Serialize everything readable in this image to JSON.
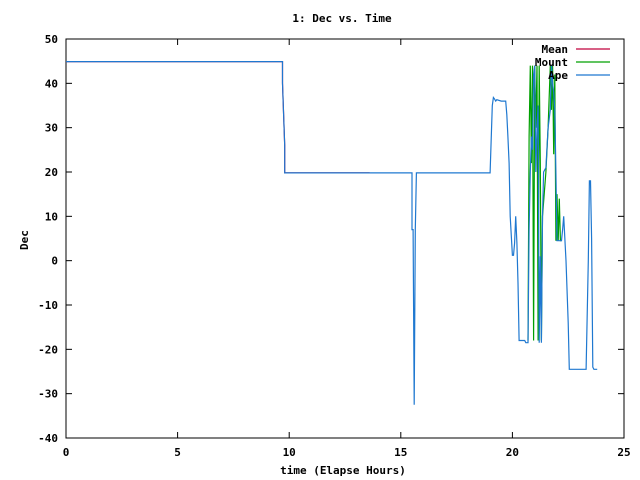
{
  "chart_data": {
    "type": "line",
    "title": "1: Dec vs. Time",
    "xlabel": "time (Elapse Hours)",
    "ylabel": "Dec",
    "xlim": [
      0,
      25
    ],
    "ylim": [
      -40,
      50
    ],
    "xticks": [
      0,
      5,
      10,
      15,
      20,
      25
    ],
    "yticks": [
      -40,
      -30,
      -20,
      -10,
      0,
      10,
      20,
      30,
      40,
      50
    ],
    "grid": false,
    "legend_position": "top-right",
    "series": [
      {
        "name": "Mean",
        "color": "#c0003c",
        "x": [
          0,
          9.7,
          9.7,
          9.8,
          9.8,
          13.6
        ],
        "y": [
          44.9,
          44.9,
          40,
          26,
          19.8,
          19.8
        ]
      },
      {
        "name": "Mount",
        "color": "#00a000",
        "x": [
          20.7,
          20.75,
          20.8,
          20.85,
          20.9,
          20.95,
          21.0,
          21.05,
          21.1,
          21.15,
          21.2,
          21.25,
          21.3,
          21.35,
          21.5,
          21.6,
          21.7,
          21.75,
          21.8,
          21.85,
          21.9,
          21.95,
          22.0,
          22.05,
          22.1,
          22.15,
          22.2
        ],
        "y": [
          -18,
          28,
          44,
          22,
          44,
          -18,
          44,
          30,
          44,
          -18,
          44,
          22,
          -18,
          10,
          20,
          30,
          44,
          34,
          44,
          24,
          42,
          4.5,
          15,
          4.5,
          14,
          4.5,
          4.5
        ]
      },
      {
        "name": "Ape",
        "color": "#1f78d0",
        "x": [
          0,
          9.7,
          9.7,
          9.8,
          9.8,
          15.4,
          15.5,
          15.5,
          15.55,
          15.6,
          15.65,
          15.7,
          19.0,
          19.1,
          19.15,
          19.2,
          19.25,
          19.3,
          19.5,
          19.7,
          19.75,
          19.8,
          19.85,
          19.9,
          20.0,
          20.05,
          20.1,
          20.15,
          20.2,
          20.25,
          20.3,
          20.35,
          20.4,
          20.45,
          20.5,
          20.55,
          20.6,
          20.7,
          20.75,
          20.8,
          20.85,
          20.9,
          20.95,
          21.0,
          21.05,
          21.1,
          21.15,
          21.2,
          21.25,
          21.3,
          21.35,
          21.4,
          21.5,
          21.6,
          21.7,
          21.75,
          21.8,
          21.85,
          21.9,
          21.95,
          22.0,
          22.1,
          22.2,
          22.25,
          22.3,
          22.4,
          22.5,
          22.55,
          22.6,
          22.7,
          22.8,
          22.9,
          23.0,
          23.1,
          23.2,
          23.3,
          23.4,
          23.45,
          23.5,
          23.55,
          23.6,
          23.65,
          23.7,
          23.8
        ],
        "y": [
          44.9,
          44.9,
          40,
          26,
          19.8,
          19.8,
          19.8,
          7,
          7,
          -32.5,
          7,
          19.8,
          19.8,
          35,
          36.8,
          36.5,
          36,
          36.3,
          36,
          36,
          33,
          28,
          22,
          10,
          1.2,
          1.2,
          4,
          10,
          4,
          -5,
          -18,
          -18,
          -18,
          -18,
          -18,
          -18,
          -18.5,
          -18.5,
          7,
          20,
          28,
          25,
          42,
          44,
          20,
          30,
          35,
          -18.5,
          1,
          -18.5,
          10,
          20,
          21,
          30,
          34,
          44,
          40,
          38,
          34,
          20,
          4.5,
          4.5,
          4.5,
          7,
          10,
          0,
          -14,
          -24.5,
          -24.5,
          -24.5,
          -24.5,
          -24.5,
          -24.5,
          -24.5,
          -24.5,
          -24.5,
          0,
          18,
          18,
          5,
          -24,
          -24.5,
          -24.5,
          -24.5
        ]
      }
    ]
  }
}
